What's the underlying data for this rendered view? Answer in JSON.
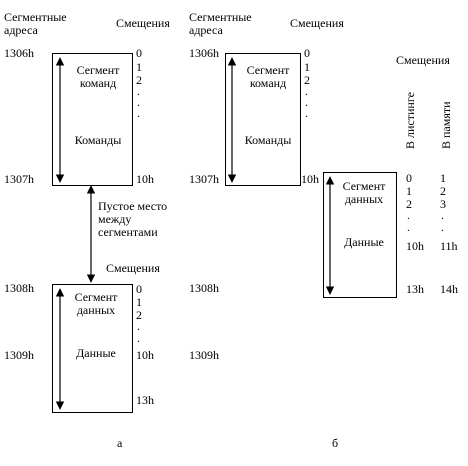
{
  "panel_a": {
    "header_addresses_line1": "Сегментные",
    "header_addresses_line2": "адреса",
    "header_offsets": "Смещения",
    "addresses": [
      "1306h",
      "1307h",
      "1308h",
      "1309h"
    ],
    "code_segment": {
      "title_line1": "Сегмент",
      "title_line2": "команд",
      "content": "Команды"
    },
    "code_offsets": [
      "0",
      "1",
      "2",
      ".",
      ".",
      ".",
      "10h"
    ],
    "gap_label": [
      "Пустое место",
      "между",
      "сегментами"
    ],
    "data_offsets_header": "Смещения",
    "data_segment": {
      "title_line1": "Сегмент",
      "title_line2": "данных",
      "content": "Данные"
    },
    "data_offsets": [
      "0",
      "1",
      "2",
      ".",
      ".",
      "10h",
      "13h"
    ],
    "caption": "а"
  },
  "panel_b": {
    "header_addresses_line1": "Сегментные",
    "header_addresses_line2": "адреса",
    "header_offsets": "Смещения",
    "addresses": [
      "1306h",
      "1307h",
      "1308h",
      "1309h"
    ],
    "code_segment": {
      "title_line1": "Сегмент",
      "title_line2": "команд",
      "content": "Команды"
    },
    "code_offsets": [
      "0",
      "1",
      "2",
      ".",
      ".",
      ".",
      "10h"
    ],
    "data_segment": {
      "title_line1": "Сегмент",
      "title_line2": "данных",
      "content": "Данные"
    },
    "offsets_table": {
      "header": "Смещения",
      "col_listing_header": "В листинге",
      "col_memory_header": "В памяти",
      "listing": [
        "0",
        "1",
        "2",
        ".",
        ".",
        "10h",
        "13h"
      ],
      "memory": [
        "1",
        "2",
        "3",
        ".",
        ".",
        "11h",
        "14h"
      ]
    },
    "caption": "б"
  }
}
